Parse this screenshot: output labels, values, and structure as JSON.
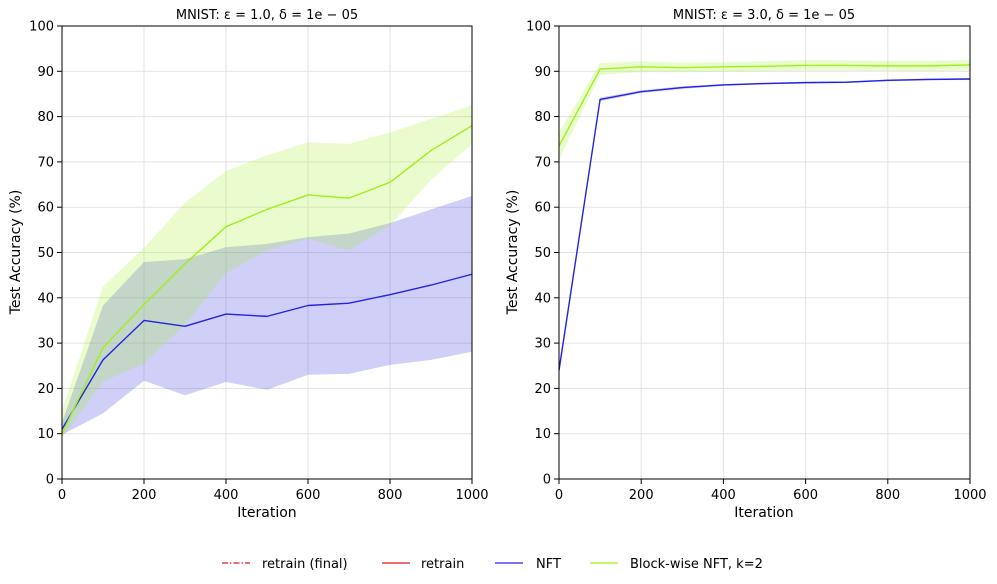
{
  "chart_data": [
    {
      "type": "line",
      "title": "MNIST: ε = 1.0, δ = 1e − 05",
      "xlabel": "Iteration",
      "ylabel": "Test Accuracy (%)",
      "xlim": [
        0,
        1000
      ],
      "ylim": [
        0,
        100
      ],
      "xticks": [
        "0",
        "200",
        "400",
        "600",
        "800",
        "1000"
      ],
      "yticks": [
        "0",
        "10",
        "20",
        "30",
        "40",
        "50",
        "60",
        "70",
        "80",
        "90",
        "100"
      ],
      "grid": true,
      "series": [
        {
          "name": "NFT",
          "color": "#2323e0",
          "x": [
            0,
            100,
            200,
            300,
            400,
            500,
            600,
            700,
            800,
            900,
            1000
          ],
          "values": [
            11,
            26.3,
            35,
            33.7,
            36.4,
            35.9,
            38.3,
            38.8,
            40.7,
            42.8,
            45.2
          ],
          "lower": [
            9.8,
            14.5,
            21.7,
            18.5,
            21.4,
            19.7,
            23,
            23.2,
            25.2,
            26.3,
            28.1
          ],
          "upper": [
            12.5,
            38.3,
            47.9,
            48.5,
            51.2,
            51.9,
            53.4,
            54.2,
            56.5,
            59.5,
            62.5
          ]
        },
        {
          "name": "Block-wise NFT, k=2",
          "color": "#9ef01a",
          "x": [
            0,
            100,
            200,
            300,
            400,
            500,
            600,
            700,
            800,
            900,
            1000
          ],
          "values": [
            10,
            29,
            38.5,
            47.5,
            55.7,
            59.5,
            62.7,
            62,
            65.5,
            72.5,
            78
          ],
          "lower": [
            9,
            21.5,
            25.5,
            34,
            45.5,
            50.5,
            53,
            50.5,
            56,
            66,
            74
          ],
          "upper": [
            15,
            42.5,
            51,
            61,
            68,
            71.5,
            74.3,
            74,
            76.5,
            79.5,
            82.5
          ]
        }
      ]
    },
    {
      "type": "line",
      "title": "MNIST: ε = 3.0, δ = 1e − 05",
      "xlabel": "Iteration",
      "ylabel": "Test Accuracy (%)",
      "xlim": [
        0,
        1000
      ],
      "ylim": [
        0,
        100
      ],
      "xticks": [
        "0",
        "200",
        "400",
        "600",
        "800",
        "1000"
      ],
      "yticks": [
        "0",
        "10",
        "20",
        "30",
        "40",
        "50",
        "60",
        "70",
        "80",
        "90",
        "100"
      ],
      "grid": true,
      "series": [
        {
          "name": "NFT",
          "color": "#2323e0",
          "x": [
            0,
            100,
            200,
            300,
            400,
            500,
            600,
            700,
            800,
            900,
            1000
          ],
          "values": [
            24,
            83.8,
            85.5,
            86.4,
            87,
            87.3,
            87.5,
            87.6,
            88,
            88.2,
            88.3
          ],
          "lower": [
            23,
            83.4,
            85.2,
            86.1,
            86.8,
            87.1,
            87.3,
            87.4,
            87.8,
            88,
            88.1
          ],
          "upper": [
            25,
            84.2,
            85.8,
            86.7,
            87.2,
            87.5,
            87.7,
            87.8,
            88.2,
            88.4,
            88.5
          ]
        },
        {
          "name": "Block-wise NFT, k=2",
          "color": "#9ef01a",
          "x": [
            0,
            100,
            200,
            300,
            400,
            500,
            600,
            700,
            800,
            900,
            1000
          ],
          "values": [
            73.5,
            90.5,
            91,
            90.8,
            91,
            91.1,
            91.3,
            91.3,
            91.2,
            91.2,
            91.4
          ],
          "lower": [
            70.5,
            89.2,
            89.8,
            89.8,
            89.9,
            90,
            90.2,
            90.2,
            90.1,
            90.1,
            90.3
          ],
          "upper": [
            76.5,
            91.8,
            92.2,
            91.9,
            92,
            92.2,
            92.5,
            92.4,
            92.3,
            92.3,
            92.5
          ]
        }
      ]
    }
  ],
  "legend": {
    "placement": "bottom-center",
    "entries": [
      {
        "label": "retrain (final)",
        "color": "#e0191e",
        "style": "dashdot"
      },
      {
        "label": "retrain",
        "color": "#e0191e",
        "style": "solid"
      },
      {
        "label": "NFT",
        "color": "#2323e0",
        "style": "solid"
      },
      {
        "label": "Block-wise NFT, k=2",
        "color": "#9ef01a",
        "style": "solid"
      }
    ]
  }
}
